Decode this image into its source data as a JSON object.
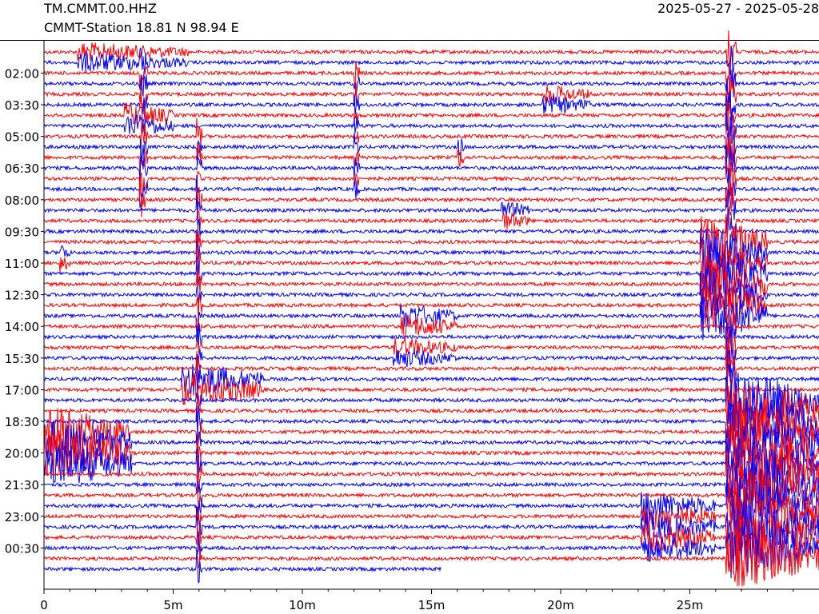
{
  "header": {
    "title": "TM.CMMT.00.HHZ",
    "subtitle": "CMMT-Station  18.81 N 98.94 E",
    "date_range": "2025-05-27 - 2025-05-28"
  },
  "chart_data": {
    "type": "line",
    "plot_kind": "helicorder",
    "colors": [
      "#ff0000",
      "#0000ff"
    ],
    "trace_count": 50,
    "last_trace_end_minutes": 15.4,
    "x_ticks": [
      {
        "value": 0,
        "label": "0"
      },
      {
        "value": 5,
        "label": "5m"
      },
      {
        "value": 10,
        "label": "10m"
      },
      {
        "value": 15,
        "label": "15m"
      },
      {
        "value": 20,
        "label": "20m"
      },
      {
        "value": 25,
        "label": "25m"
      }
    ],
    "xlim": [
      0,
      30
    ],
    "x_minor_step": 1,
    "y_tick_labels": [
      {
        "trace": 2,
        "label": "02:00"
      },
      {
        "trace": 5,
        "label": "03:30"
      },
      {
        "trace": 8,
        "label": "05:00"
      },
      {
        "trace": 11,
        "label": "06:30"
      },
      {
        "trace": 14,
        "label": "08:00"
      },
      {
        "trace": 17,
        "label": "09:30"
      },
      {
        "trace": 20,
        "label": "11:00"
      },
      {
        "trace": 23,
        "label": "12:30"
      },
      {
        "trace": 26,
        "label": "14:00"
      },
      {
        "trace": 29,
        "label": "15:30"
      },
      {
        "trace": 32,
        "label": "17:00"
      },
      {
        "trace": 35,
        "label": "18:30"
      },
      {
        "trace": 38,
        "label": "20:00"
      },
      {
        "trace": 41,
        "label": "21:30"
      },
      {
        "trace": 44,
        "label": "23:00"
      },
      {
        "trace": 47,
        "label": "00:30"
      }
    ],
    "events": [
      {
        "start": 1.3,
        "end": 5.6,
        "trace_start": 0,
        "trace_end": 1,
        "amplitude": 2.0,
        "color": "#ff0000"
      },
      {
        "start": 3.7,
        "end": 4.0,
        "trace_start": 1,
        "trace_end": 14,
        "amplitude": 4.0,
        "color": "#0000ff"
      },
      {
        "start": 3.1,
        "end": 5.0,
        "trace_start": 6,
        "trace_end": 7,
        "amplitude": 2.5,
        "color": "#0000ff"
      },
      {
        "start": 12.0,
        "end": 12.2,
        "trace_start": 2,
        "trace_end": 13,
        "amplitude": 3.0,
        "color": "#ff0000"
      },
      {
        "start": 19.3,
        "end": 21.2,
        "trace_start": 4,
        "trace_end": 5,
        "amplitude": 2.0,
        "color": "#0000ff"
      },
      {
        "start": 16.0,
        "end": 16.3,
        "trace_start": 9,
        "trace_end": 10,
        "amplitude": 2.5,
        "color": "#ff0000"
      },
      {
        "start": 17.7,
        "end": 18.8,
        "trace_start": 15,
        "trace_end": 16,
        "amplitude": 2.0,
        "color": "#0000ff"
      },
      {
        "start": 0.6,
        "end": 1.0,
        "trace_start": 19,
        "trace_end": 20,
        "amplitude": 2.0,
        "color": "#ff0000"
      },
      {
        "start": 5.9,
        "end": 6.1,
        "trace_start": 8,
        "trace_end": 49,
        "amplitude": 4.0,
        "color": "#ff0000"
      },
      {
        "start": 5.3,
        "end": 8.5,
        "trace_start": 31,
        "trace_end": 32,
        "amplitude": 3.5,
        "color": "#ff0000"
      },
      {
        "start": 13.8,
        "end": 16.0,
        "trace_start": 25,
        "trace_end": 26,
        "amplitude": 2.5,
        "color": "#ff0000"
      },
      {
        "start": 13.5,
        "end": 16.0,
        "trace_start": 28,
        "trace_end": 29,
        "amplitude": 2.0,
        "color": "#ff0000"
      },
      {
        "start": 0.0,
        "end": 3.4,
        "trace_start": 36,
        "trace_end": 39,
        "amplitude": 5.0,
        "color": "#0000ff"
      },
      {
        "start": 25.4,
        "end": 28.0,
        "trace_start": 18,
        "trace_end": 25,
        "amplitude": 5.0,
        "color": "#ff0000"
      },
      {
        "start": 25.4,
        "end": 26.0,
        "trace_start": 23,
        "trace_end": 24,
        "amplitude": 2.0,
        "color": "#0000ff"
      },
      {
        "start": 26.4,
        "end": 26.8,
        "trace_start": 0,
        "trace_end": 49,
        "amplitude": 5.0,
        "color": "#ff0000"
      },
      {
        "start": 26.5,
        "end": 30.0,
        "trace_start": 33,
        "trace_end": 49,
        "amplitude": 6.0,
        "color": "#ff0000"
      },
      {
        "start": 23.1,
        "end": 26.0,
        "trace_start": 43,
        "trace_end": 47,
        "amplitude": 3.0,
        "color": "#ff0000"
      }
    ]
  }
}
